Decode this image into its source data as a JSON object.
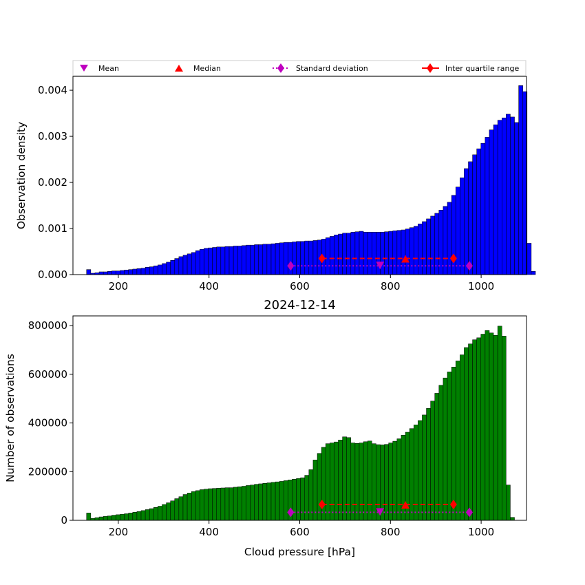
{
  "chart_data": [
    {
      "type": "bar",
      "ylabel": "Observation density",
      "xlim": [
        100,
        1100
      ],
      "ylim": [
        0,
        0.0043
      ],
      "xticks": [
        200,
        400,
        600,
        800,
        1000
      ],
      "yticks": [
        "0.000",
        "0.001",
        "0.002",
        "0.003",
        "0.004"
      ],
      "ytick_values": [
        0,
        0.001,
        0.002,
        0.003,
        0.004
      ],
      "bar_color": "#0000ff",
      "bin_start": 130,
      "bin_width": 9.25,
      "values": [
        0.00011,
        3e-05,
        4e-05,
        6e-05,
        6e-05,
        7e-05,
        8e-05,
        8e-05,
        9e-05,
        0.0001,
        0.00011,
        0.00012,
        0.00013,
        0.00014,
        0.00016,
        0.00017,
        0.00019,
        0.00021,
        0.00024,
        0.00027,
        0.00031,
        0.00035,
        0.00039,
        0.00042,
        0.00045,
        0.00048,
        0.00052,
        0.00055,
        0.00057,
        0.00058,
        0.00059,
        0.0006,
        0.0006,
        0.00061,
        0.00061,
        0.00062,
        0.00062,
        0.00063,
        0.00064,
        0.00064,
        0.00065,
        0.00065,
        0.00066,
        0.00066,
        0.00067,
        0.00068,
        0.00069,
        0.0007,
        0.0007,
        0.00071,
        0.00072,
        0.00072,
        0.00073,
        0.00073,
        0.00074,
        0.00075,
        0.00077,
        0.0008,
        0.00083,
        0.00086,
        0.00088,
        0.0009,
        0.0009,
        0.00092,
        0.00093,
        0.00094,
        0.00092,
        0.00092,
        0.00092,
        0.00092,
        0.00092,
        0.00093,
        0.00094,
        0.00095,
        0.00096,
        0.00097,
        0.00099,
        0.00102,
        0.00105,
        0.0011,
        0.00115,
        0.00121,
        0.00127,
        0.00133,
        0.0014,
        0.00148,
        0.00157,
        0.00172,
        0.0019,
        0.0021,
        0.0023,
        0.00245,
        0.0026,
        0.00273,
        0.00285,
        0.00298,
        0.00314,
        0.00325,
        0.00335,
        0.0034,
        0.00348,
        0.00342,
        0.0033,
        0.0041,
        0.00397,
        0.00068,
        7e-05
      ],
      "stats": {
        "mean": 777,
        "median": 833,
        "std_range": [
          580,
          974
        ],
        "iqr_range": [
          649,
          939
        ],
        "stat_y": 0.00019,
        "iqr_y": 0.00035
      }
    },
    {
      "type": "bar",
      "title": "2024-12-14",
      "xlabel": "Cloud pressure [hPa]",
      "ylabel": "Number of observations",
      "xlim": [
        100,
        1100
      ],
      "ylim": [
        0,
        840000
      ],
      "xticks": [
        200,
        400,
        600,
        800,
        1000
      ],
      "yticks": [
        "0",
        "200000",
        "400000",
        "600000",
        "800000"
      ],
      "ytick_values": [
        0,
        200000,
        400000,
        600000,
        800000
      ],
      "bar_color": "#008000",
      "bin_start": 130,
      "bin_width": 9.25,
      "values": [
        30000,
        8000,
        11000,
        14000,
        16000,
        18000,
        21000,
        23000,
        25000,
        27000,
        30000,
        33000,
        36000,
        40000,
        44000,
        48000,
        53000,
        58000,
        65000,
        72000,
        80000,
        89000,
        97000,
        106000,
        112000,
        118000,
        122000,
        126000,
        128000,
        130000,
        131000,
        132000,
        133000,
        134000,
        134000,
        136000,
        138000,
        140000,
        143000,
        145000,
        148000,
        150000,
        152000,
        154000,
        156000,
        158000,
        160000,
        163000,
        166000,
        169000,
        172000,
        175000,
        185000,
        208000,
        248000,
        275000,
        300000,
        315000,
        318000,
        322000,
        330000,
        343000,
        340000,
        318000,
        316000,
        318000,
        323000,
        326000,
        315000,
        311000,
        310000,
        312000,
        318000,
        325000,
        335000,
        350000,
        362000,
        377000,
        392000,
        410000,
        433000,
        460000,
        490000,
        522000,
        555000,
        585000,
        610000,
        630000,
        655000,
        680000,
        710000,
        725000,
        742000,
        750000,
        765000,
        780000,
        770000,
        760000,
        798000,
        757000,
        145000,
        12000
      ],
      "stats": {
        "mean": 777,
        "median": 833,
        "std_range": [
          580,
          974
        ],
        "iqr_range": [
          649,
          939
        ],
        "stat_y": 33000,
        "iqr_y": 65000
      }
    }
  ],
  "legend": {
    "placement": "above top plot",
    "items": [
      {
        "label": "Mean",
        "marker": "triangle-down",
        "color": "#bf00bf"
      },
      {
        "label": "Median",
        "marker": "triangle-up",
        "color": "#ff0000"
      },
      {
        "label": "Standard deviation",
        "marker": "diamond-dotted-line",
        "color": "#bf00bf"
      },
      {
        "label": "Inter quartile range",
        "marker": "diamond-solid-line",
        "color": "#ff0000"
      }
    ]
  }
}
